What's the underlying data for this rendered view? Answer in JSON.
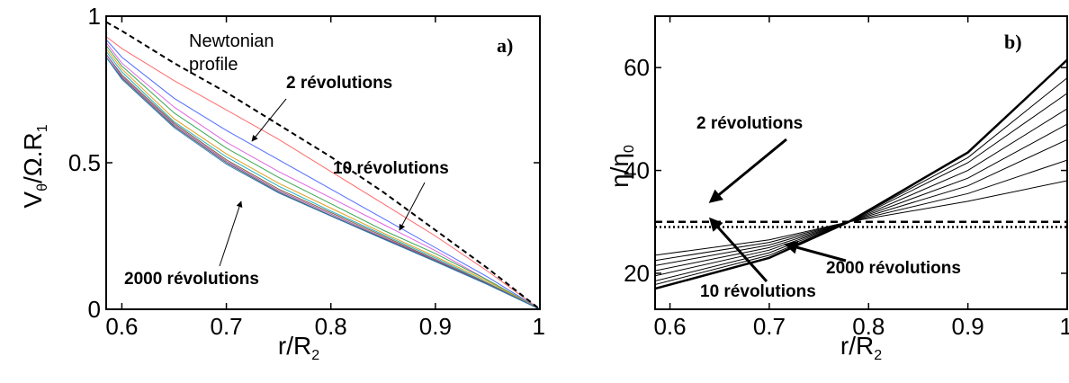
{
  "chart_data": [
    {
      "type": "line",
      "panel_label": "a)",
      "xlabel": "r/R",
      "xlabel_sub": "2",
      "ylabel": "V",
      "ylabel_sub": "θ",
      "ylabel_mid": "/Ω.R",
      "ylabel_sub2": "1",
      "xlim": [
        0.585,
        1.0
      ],
      "ylim": [
        0,
        1
      ],
      "x_ticks": [
        0.6,
        0.7,
        0.8,
        0.9,
        1.0
      ],
      "x_tick_labels": [
        "0.6",
        "0.7",
        "0.8",
        "0.9",
        "1"
      ],
      "y_ticks": [
        0,
        0.5,
        1
      ],
      "y_tick_labels": [
        "0",
        "0.5",
        "1"
      ],
      "grid": false,
      "reference": {
        "name": "Newtonian profile",
        "label_line1": "Newtonian",
        "label_line2": "profile",
        "x": [
          0.585,
          0.6,
          0.65,
          0.7,
          0.75,
          0.8,
          0.85,
          0.9,
          0.95,
          1.0
        ],
        "y": [
          0.98,
          0.95,
          0.84,
          0.74,
          0.63,
          0.52,
          0.4,
          0.27,
          0.14,
          0.0
        ]
      },
      "series": [
        {
          "color": "#ff6b6b",
          "x": [
            0.585,
            0.6,
            0.65,
            0.7,
            0.75,
            0.8,
            0.85,
            0.9,
            0.95,
            1.0
          ],
          "y": [
            0.93,
            0.89,
            0.78,
            0.68,
            0.58,
            0.47,
            0.36,
            0.25,
            0.13,
            0.0
          ]
        },
        {
          "color": "#4f6bff",
          "x": [
            0.585,
            0.6,
            0.65,
            0.7,
            0.75,
            0.8,
            0.85,
            0.9,
            0.95,
            1.0
          ],
          "y": [
            0.92,
            0.86,
            0.72,
            0.61,
            0.51,
            0.41,
            0.31,
            0.21,
            0.11,
            0.0
          ]
        },
        {
          "color": "#e066e0",
          "x": [
            0.585,
            0.6,
            0.65,
            0.7,
            0.75,
            0.8,
            0.85,
            0.9,
            0.95,
            1.0
          ],
          "y": [
            0.91,
            0.84,
            0.69,
            0.57,
            0.47,
            0.38,
            0.29,
            0.2,
            0.1,
            0.0
          ]
        },
        {
          "color": "#3aa655",
          "x": [
            0.585,
            0.6,
            0.65,
            0.7,
            0.75,
            0.8,
            0.85,
            0.9,
            0.95,
            1.0
          ],
          "y": [
            0.9,
            0.83,
            0.67,
            0.55,
            0.45,
            0.36,
            0.27,
            0.19,
            0.1,
            0.0
          ]
        },
        {
          "color": "#e0a020",
          "x": [
            0.585,
            0.6,
            0.65,
            0.7,
            0.75,
            0.8,
            0.85,
            0.9,
            0.95,
            1.0
          ],
          "y": [
            0.89,
            0.82,
            0.65,
            0.53,
            0.43,
            0.345,
            0.26,
            0.18,
            0.095,
            0.0
          ]
        },
        {
          "color": "#20b0c0",
          "x": [
            0.585,
            0.6,
            0.65,
            0.7,
            0.75,
            0.8,
            0.85,
            0.9,
            0.95,
            1.0
          ],
          "y": [
            0.88,
            0.81,
            0.64,
            0.52,
            0.42,
            0.335,
            0.255,
            0.175,
            0.09,
            0.0
          ]
        },
        {
          "color": "#8a5a30",
          "x": [
            0.585,
            0.6,
            0.65,
            0.7,
            0.75,
            0.8,
            0.85,
            0.9,
            0.95,
            1.0
          ],
          "y": [
            0.87,
            0.8,
            0.635,
            0.51,
            0.41,
            0.33,
            0.25,
            0.17,
            0.088,
            0.0
          ]
        },
        {
          "color": "#9b59b6",
          "x": [
            0.585,
            0.6,
            0.65,
            0.7,
            0.75,
            0.8,
            0.85,
            0.9,
            0.95,
            1.0
          ],
          "y": [
            0.87,
            0.795,
            0.63,
            0.505,
            0.405,
            0.325,
            0.245,
            0.168,
            0.086,
            0.0
          ]
        },
        {
          "color": "#555555",
          "x": [
            0.585,
            0.6,
            0.65,
            0.7,
            0.75,
            0.8,
            0.85,
            0.9,
            0.95,
            1.0
          ],
          "y": [
            0.86,
            0.79,
            0.625,
            0.5,
            0.4,
            0.32,
            0.242,
            0.165,
            0.085,
            0.0
          ]
        },
        {
          "color": "#2c7bb6",
          "x": [
            0.585,
            0.6,
            0.65,
            0.7,
            0.75,
            0.8,
            0.85,
            0.9,
            0.95,
            1.0
          ],
          "y": [
            0.86,
            0.785,
            0.62,
            0.495,
            0.397,
            0.318,
            0.24,
            0.163,
            0.084,
            0.0
          ]
        }
      ],
      "annotations": [
        {
          "text": "2 révolutions",
          "target_x": 0.72,
          "target_y": 0.74
        },
        {
          "text": "10 révolutions",
          "target_x": 0.86,
          "target_y": 0.35
        },
        {
          "text": "2000 révolutions",
          "target_x": 0.72,
          "target_y": 0.48
        }
      ]
    },
    {
      "type": "line",
      "panel_label": "b)",
      "xlabel": "r/R",
      "xlabel_sub": "2",
      "ylabel": "η/η",
      "ylabel_sub": "0",
      "xlim": [
        0.585,
        1.0
      ],
      "ylim": [
        13,
        70
      ],
      "x_ticks": [
        0.6,
        0.7,
        0.8,
        0.9,
        1.0
      ],
      "x_tick_labels": [
        "0.6",
        "0.7",
        "0.8",
        "0.9",
        "1"
      ],
      "y_ticks": [
        20,
        40,
        60
      ],
      "y_tick_labels": [
        "20",
        "40",
        "60"
      ],
      "grid": false,
      "reference_lines": [
        {
          "style": "dashed",
          "y": 30
        },
        {
          "style": "dotted",
          "y": 29
        }
      ],
      "series": [
        {
          "x": [
            0.585,
            0.7,
            0.78,
            0.9,
            1.0
          ],
          "y": [
            23.5,
            26.5,
            30,
            34,
            38
          ]
        },
        {
          "x": [
            0.585,
            0.7,
            0.78,
            0.9,
            1.0
          ],
          "y": [
            22.5,
            26,
            30,
            35.5,
            42
          ]
        },
        {
          "x": [
            0.585,
            0.7,
            0.78,
            0.9,
            1.0
          ],
          "y": [
            21.5,
            25.5,
            30,
            37,
            46
          ]
        },
        {
          "x": [
            0.585,
            0.7,
            0.78,
            0.9,
            1.0
          ],
          "y": [
            20.5,
            25,
            30,
            38.5,
            49
          ]
        },
        {
          "x": [
            0.585,
            0.7,
            0.78,
            0.9,
            1.0
          ],
          "y": [
            19.5,
            24.5,
            30,
            40,
            52
          ]
        },
        {
          "x": [
            0.585,
            0.7,
            0.78,
            0.9,
            1.0
          ],
          "y": [
            18.5,
            24,
            30,
            41.5,
            55
          ]
        },
        {
          "x": [
            0.585,
            0.7,
            0.78,
            0.9,
            1.0
          ],
          "y": [
            17.8,
            23.5,
            30,
            42.5,
            58
          ]
        },
        {
          "x": [
            0.585,
            0.7,
            0.78,
            0.9,
            1.0
          ],
          "y": [
            17,
            23,
            30,
            43.5,
            61.5
          ]
        }
      ],
      "annotations": [
        {
          "text": "2 révolutions",
          "target_x": 0.61,
          "target_y": 30.5
        },
        {
          "text": "10 révolutions",
          "target_x": 0.61,
          "target_y": 28.5
        },
        {
          "text": "2000 révolutions",
          "target_x": 0.71,
          "target_y": 22
        }
      ]
    }
  ]
}
